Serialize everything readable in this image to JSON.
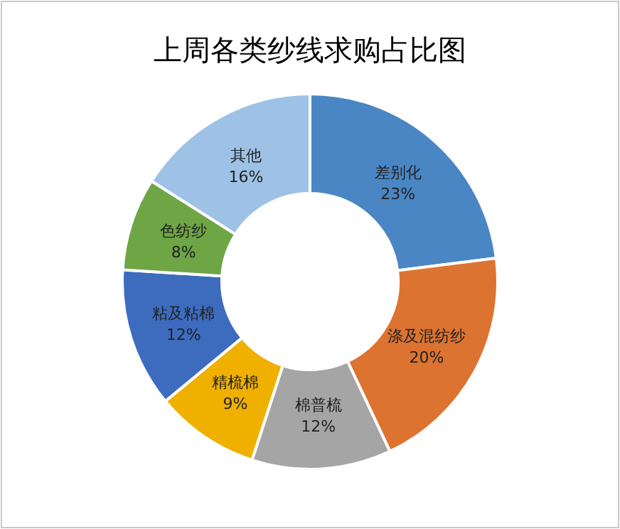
{
  "chart_data": {
    "type": "donut",
    "title": "上周各类纱线求购占比图",
    "categories": [
      "差别化",
      "涤及混纺纱",
      "棉普梳",
      "精梳棉",
      "粘及粘棉",
      "色纺纱",
      "其他"
    ],
    "values": [
      23,
      20,
      12,
      9,
      12,
      8,
      16
    ],
    "colors": [
      "#4a86c4",
      "#dd7331",
      "#a5a5a5",
      "#f0b000",
      "#3d6cbf",
      "#6ea545",
      "#9ec2e6"
    ],
    "value_labels": [
      "23%",
      "20%",
      "12%",
      "9%",
      "12%",
      "8%",
      "16%"
    ],
    "legend": false
  }
}
